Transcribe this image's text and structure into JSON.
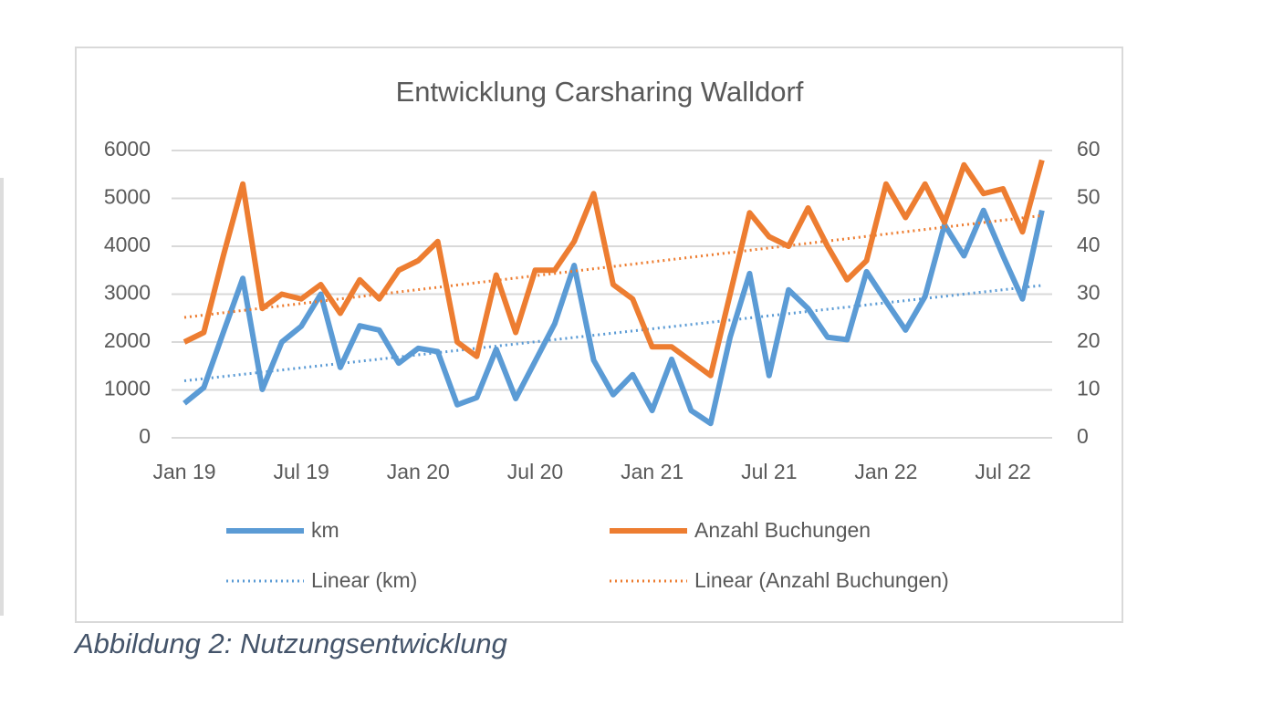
{
  "chart_data": {
    "type": "line",
    "title": "Entwicklung Carsharing Walldorf",
    "caption": "Abbildung 2: Nutzungsentwicklung",
    "categories": [
      "Jan 19",
      null,
      null,
      null,
      null,
      null,
      "Jul 19",
      null,
      null,
      null,
      null,
      null,
      "Jan 20",
      null,
      null,
      null,
      null,
      null,
      "Jul 20",
      null,
      null,
      null,
      null,
      null,
      "Jan 21",
      null,
      null,
      null,
      null,
      null,
      "Jul 21",
      null,
      null,
      null,
      null,
      null,
      "Jan 22",
      null,
      null,
      null,
      null,
      null,
      "Jul 22",
      null,
      null
    ],
    "series": [
      {
        "name": "km",
        "color": "#5b9bd5",
        "axis": "y",
        "values": [
          720,
          1050,
          2200,
          3330,
          1010,
          2000,
          2330,
          3000,
          1470,
          2340,
          2250,
          1560,
          1870,
          1800,
          690,
          840,
          1850,
          820,
          1600,
          2380,
          3600,
          1620,
          900,
          1320,
          570,
          1640,
          570,
          300,
          2100,
          3430,
          1300,
          3090,
          2700,
          2100,
          2050,
          3470,
          2850,
          2250,
          2950,
          4450,
          3800,
          4750,
          3800,
          2900,
          4750
        ],
        "trendline": {
          "name": "Linear (km)",
          "style": "dotted"
        }
      },
      {
        "name": "Anzahl Buchungen",
        "color": "#ed7d31",
        "axis": "y2",
        "values": [
          20,
          22,
          38,
          53,
          27,
          30,
          29,
          32,
          26,
          33,
          29,
          35,
          37,
          41,
          20,
          17,
          34,
          22,
          35,
          35,
          41,
          51,
          32,
          29,
          19,
          19,
          16,
          13,
          30,
          47,
          42,
          40,
          48,
          40,
          33,
          37,
          53,
          46,
          53,
          45,
          57,
          51,
          52,
          43,
          58
        ],
        "trendline": {
          "name": "Linear (Anzahl Buchungen)",
          "style": "dotted"
        }
      }
    ],
    "ylim": [
      0,
      6000
    ],
    "yticks": [
      0,
      1000,
      2000,
      3000,
      4000,
      5000,
      6000
    ],
    "y2lim": [
      0,
      60
    ],
    "y2ticks": [
      0,
      10,
      20,
      30,
      40,
      50,
      60
    ],
    "grid": true,
    "legend": "bottom"
  }
}
